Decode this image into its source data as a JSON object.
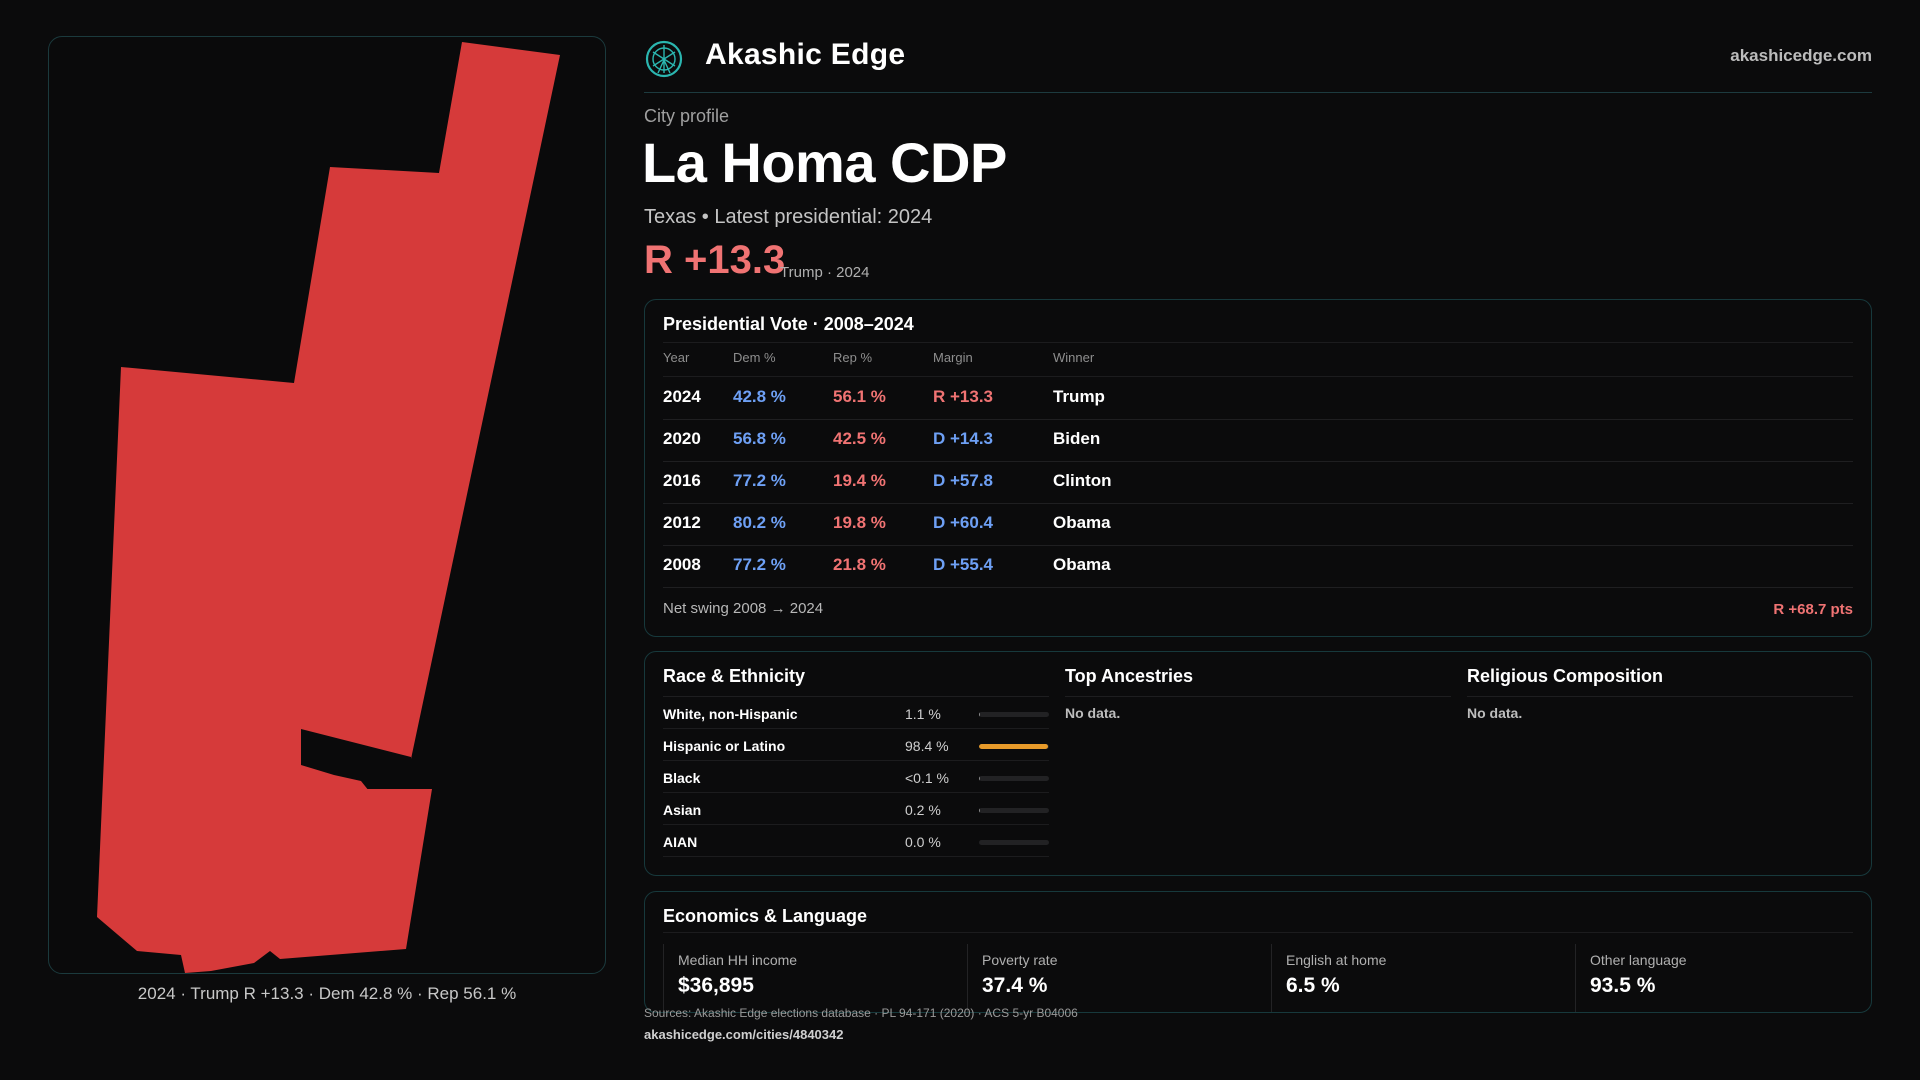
{
  "brand": {
    "name": "Akashic Edge",
    "url": "akashicedge.com",
    "logo_icon": "akashic-edge-logo-icon",
    "accent": "#2bb6b0"
  },
  "header": {
    "eyebrow": "City profile",
    "title": "La Homa CDP"
  },
  "summary": {
    "subline": "Texas • Latest presidential: 2024",
    "margin": "R +13.3",
    "margin_detail": "Trump · 2024",
    "margin_color": "#f07373"
  },
  "map": {
    "fill_color": "#d63a3a",
    "caption": "2024 · Trump R +13.3 · Dem 42.8 % · Rep 56.1 %"
  },
  "presidential": {
    "title": "Presidential Vote · 2008–2024",
    "columns": [
      "Year",
      "Dem %",
      "Rep %",
      "Margin",
      "Winner"
    ],
    "rows": [
      {
        "year": "2024",
        "dem": "42.8 %",
        "rep": "56.1 %",
        "margin": "R +13.3",
        "party": "R",
        "winner": "Trump"
      },
      {
        "year": "2020",
        "dem": "56.8 %",
        "rep": "42.5 %",
        "margin": "D +14.3",
        "party": "D",
        "winner": "Biden"
      },
      {
        "year": "2016",
        "dem": "77.2 %",
        "rep": "19.4 %",
        "margin": "D +57.8",
        "party": "D",
        "winner": "Clinton"
      },
      {
        "year": "2012",
        "dem": "80.2 %",
        "rep": "19.8 %",
        "margin": "D +60.4",
        "party": "D",
        "winner": "Obama"
      },
      {
        "year": "2008",
        "dem": "77.2 %",
        "rep": "21.8 %",
        "margin": "D +55.4",
        "party": "D",
        "winner": "Obama"
      }
    ],
    "swing_label": "Net swing 2008 → 2024",
    "swing_value": "R +68.7 pts",
    "colors": {
      "dem": "#6ea0f5",
      "rep": "#f07373"
    }
  },
  "race": {
    "title": "Race & Ethnicity",
    "rows": [
      {
        "name": "White, non-Hispanic",
        "value": "1.1 %",
        "share": 0.011
      },
      {
        "name": "Hispanic or Latino",
        "value": "98.4 %",
        "share": 0.984
      },
      {
        "name": "Black",
        "value": "<0.1 %",
        "share": 0.0005
      },
      {
        "name": "Asian",
        "value": "0.2 %",
        "share": 0.002
      },
      {
        "name": "AIAN",
        "value": "0.0 %",
        "share": 0
      }
    ],
    "bar_color": "#e89b2a"
  },
  "ancestries": {
    "title": "Top Ancestries",
    "empty": "No data."
  },
  "religion": {
    "title": "Religious Composition",
    "empty": "No data."
  },
  "economics": {
    "title": "Economics & Language",
    "stats": [
      {
        "label": "Median HH income",
        "value": "$36,895"
      },
      {
        "label": "Poverty rate",
        "value": "37.4 %"
      },
      {
        "label": "English at home",
        "value": "6.5 %"
      },
      {
        "label": "Other language",
        "value": "93.5 %"
      }
    ]
  },
  "footer": {
    "sources": "Sources: Akashic Edge elections database · PL 94-171 (2020) · ACS 5-yr B04006",
    "page_url": "akashicedge.com/cities/4840342"
  }
}
